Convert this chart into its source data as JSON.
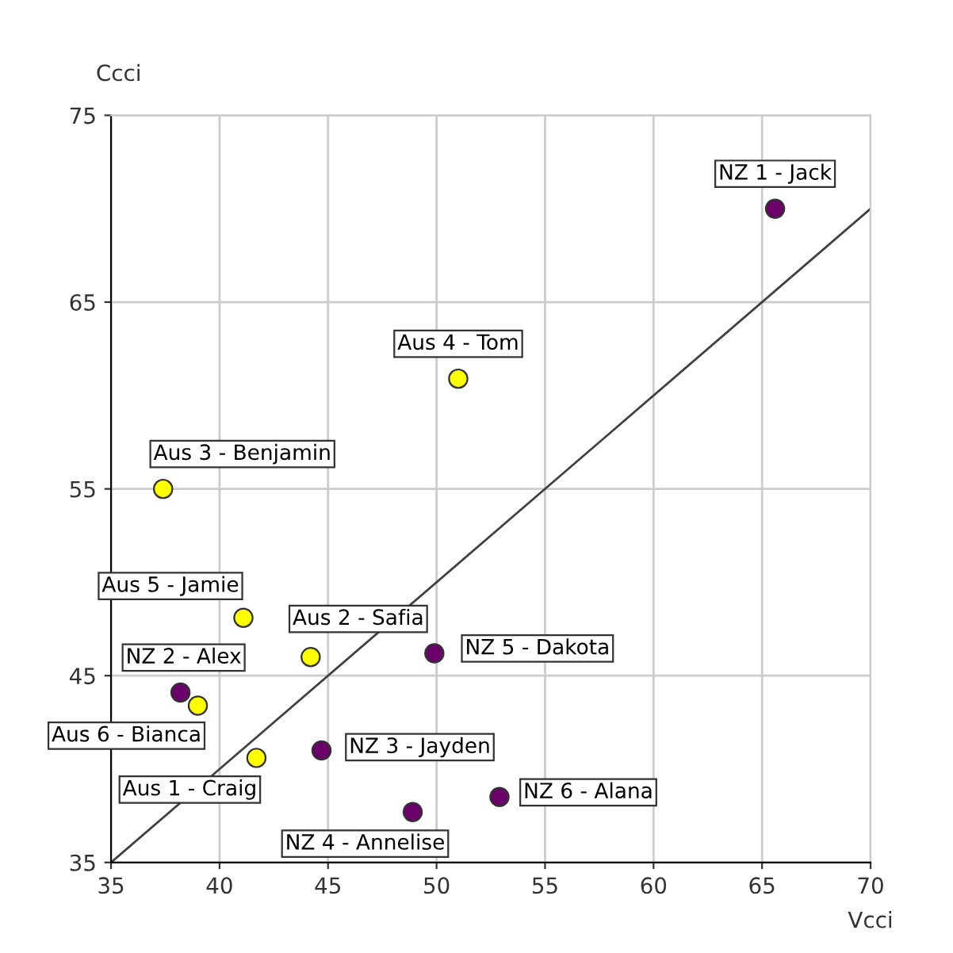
{
  "chart_data": {
    "type": "scatter",
    "xlabel": "Vcci",
    "ylabel": "Ccci",
    "xlim": [
      35,
      70
    ],
    "ylim": [
      35,
      75
    ],
    "xticks": [
      35,
      40,
      45,
      50,
      55,
      60,
      65,
      70
    ],
    "yticks": [
      35,
      45,
      55,
      65,
      75
    ],
    "grid": true,
    "marker": "circle",
    "legend": false,
    "series": [
      {
        "color": "#ffff00",
        "x": [
          41.7,
          44.2,
          37.4,
          51.0,
          41.1,
          39.0
        ],
        "values": [
          40.6,
          46.0,
          55.0,
          60.9,
          48.1,
          43.4
        ]
      },
      {
        "color": "#6b006b",
        "x": [
          65.6,
          38.2,
          44.7,
          48.9,
          49.9,
          52.9
        ],
        "values": [
          70.0,
          44.1,
          41.0,
          37.7,
          46.2,
          38.5
        ]
      },
      {
        "type": "line",
        "color": "#404040",
        "x": [
          35,
          70
        ],
        "values": [
          35,
          70
        ],
        "marker": "none"
      }
    ],
    "annotations": [
      {
        "text": "Aus 1 - Craig",
        "x": 41.7,
        "y": 40.6
      },
      {
        "text": "Aus 2 - Safia",
        "x": 44.2,
        "y": 46.0
      },
      {
        "text": "Aus 3 - Benjamin",
        "x": 37.4,
        "y": 55.0
      },
      {
        "text": "Aus 4 - Tom",
        "x": 51.0,
        "y": 60.9
      },
      {
        "text": "Aus 5 - Jamie",
        "x": 41.1,
        "y": 48.1
      },
      {
        "text": "Aus 6 - Bianca",
        "x": 39.0,
        "y": 43.4
      },
      {
        "text": "NZ 1 - Jack",
        "x": 65.6,
        "y": 70.0
      },
      {
        "text": "NZ 2 - Alex",
        "x": 38.2,
        "y": 44.1
      },
      {
        "text": "NZ 3 - Jayden",
        "x": 44.7,
        "y": 41.0
      },
      {
        "text": "NZ 4 - Annelise",
        "x": 48.9,
        "y": 37.7
      },
      {
        "text": "NZ 5 - Dakota",
        "x": 49.9,
        "y": 46.2
      },
      {
        "text": "NZ 6 - Alana",
        "x": 52.9,
        "y": 38.5
      }
    ]
  }
}
